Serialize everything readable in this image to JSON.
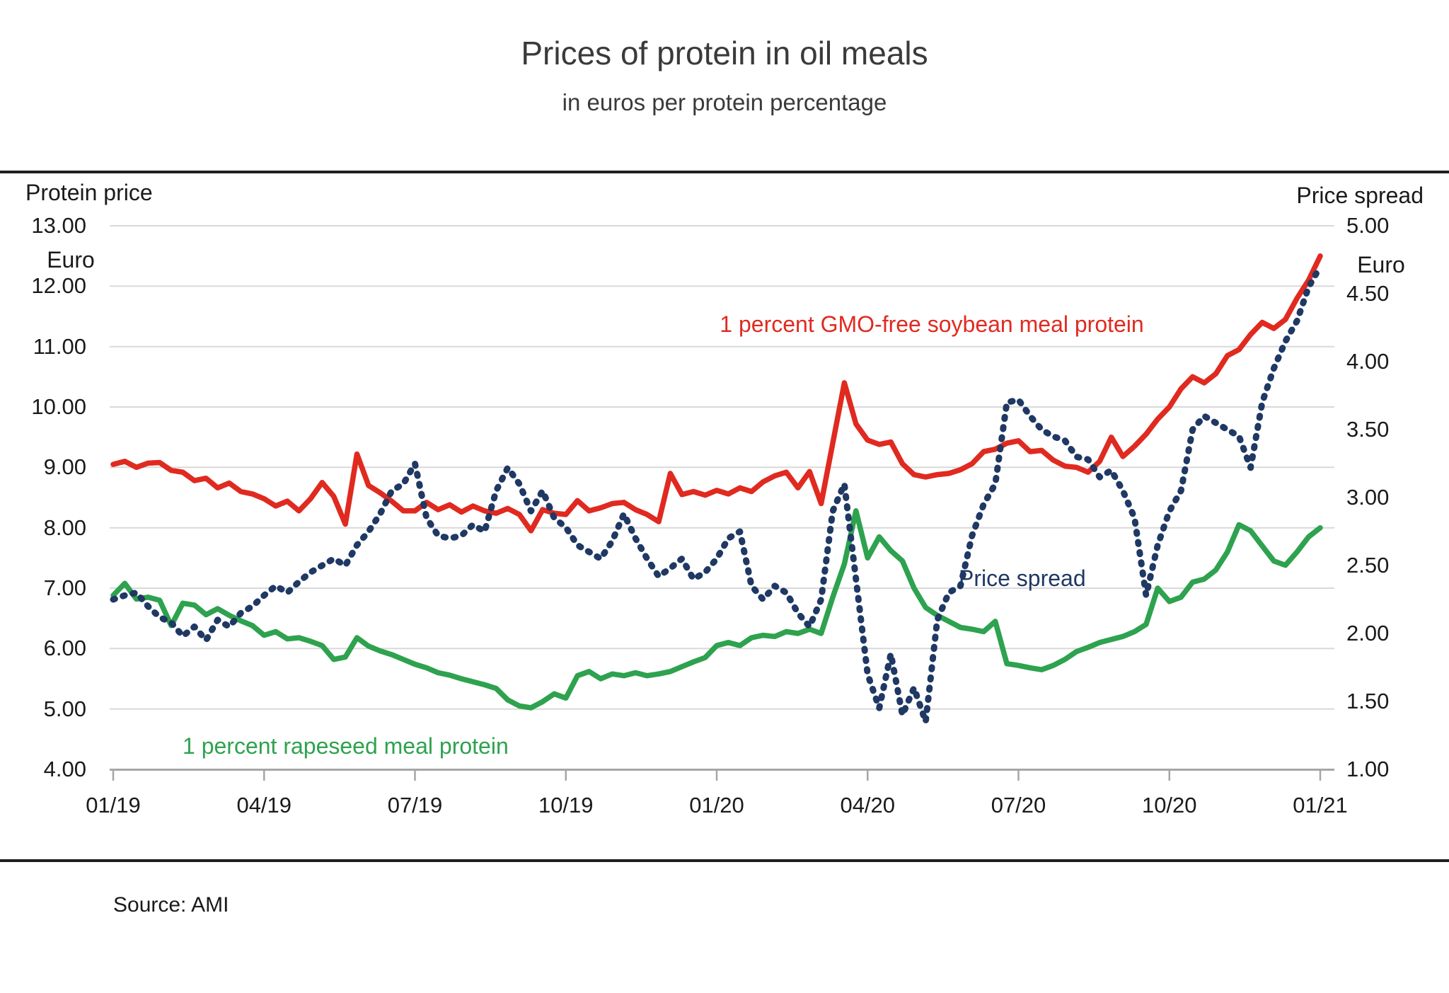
{
  "chart_data": {
    "type": "line",
    "title": "Prices of protein in oil meals",
    "subtitle": "in euros per protein percentage",
    "source": "Source: AMI",
    "left_axis": {
      "header": "Protein price",
      "unit": "Euro",
      "range": [
        4.0,
        13.0
      ],
      "ticks": [
        "13.00",
        "12.00",
        "11.00",
        "10.00",
        "9.00",
        "8.00",
        "7.00",
        "6.00",
        "5.00",
        "4.00"
      ]
    },
    "right_axis": {
      "header": "Price spread",
      "unit": "Euro",
      "range": [
        1.0,
        5.0
      ],
      "ticks": [
        "5.00",
        "4.50",
        "4.00",
        "3.50",
        "3.00",
        "2.50",
        "2.00",
        "1.50",
        "1.00"
      ]
    },
    "x_axis": {
      "tick_labels": [
        "01/19",
        "04/19",
        "07/19",
        "10/19",
        "01/20",
        "04/20",
        "07/20",
        "10/20",
        "01/21"
      ],
      "tick_weeks": [
        0,
        13,
        26,
        39,
        52,
        65,
        78,
        91,
        104
      ],
      "weeks_total": 104
    },
    "grid": "horizontal-only",
    "colors": {
      "soybean": "#e02a20",
      "rapeseed": "#2ea24e",
      "spread": "#1f3864",
      "gridline": "#d9d9d9",
      "axis": "#a6a6a6",
      "rule": "#1f1f1f"
    },
    "series": [
      {
        "name": "1 percent GMO-free soybean meal protein",
        "axis": "left",
        "style": "solid",
        "color": "#e02a20",
        "values": [
          9.05,
          9.1,
          9.0,
          9.07,
          9.08,
          8.95,
          8.92,
          8.78,
          8.82,
          8.66,
          8.74,
          8.6,
          8.56,
          8.48,
          8.36,
          8.44,
          8.28,
          8.48,
          8.75,
          8.52,
          8.06,
          9.22,
          8.7,
          8.58,
          8.44,
          8.28,
          8.28,
          8.42,
          8.3,
          8.38,
          8.26,
          8.36,
          8.28,
          8.24,
          8.32,
          8.22,
          7.95,
          8.3,
          8.24,
          8.22,
          8.45,
          8.28,
          8.33,
          8.4,
          8.42,
          8.3,
          8.22,
          8.1,
          8.9,
          8.55,
          8.6,
          8.54,
          8.62,
          8.56,
          8.66,
          8.6,
          8.76,
          8.86,
          8.92,
          8.66,
          8.93,
          8.4,
          9.4,
          10.4,
          9.72,
          9.45,
          9.38,
          9.42,
          9.06,
          8.88,
          8.84,
          8.88,
          8.9,
          8.96,
          9.06,
          9.26,
          9.3,
          9.4,
          9.44,
          9.26,
          9.28,
          9.12,
          9.02,
          9.0,
          8.92,
          9.1,
          9.5,
          9.18,
          9.35,
          9.55,
          9.8,
          10.0,
          10.3,
          10.5,
          10.4,
          10.55,
          10.85,
          10.95,
          11.2,
          11.4,
          11.3,
          11.45,
          11.8,
          12.1,
          12.5
        ]
      },
      {
        "name": "1 percent rapeseed meal protein",
        "axis": "left",
        "style": "solid",
        "color": "#2ea24e",
        "values": [
          6.88,
          7.08,
          6.82,
          6.85,
          6.8,
          6.38,
          6.75,
          6.72,
          6.56,
          6.66,
          6.55,
          6.46,
          6.38,
          6.22,
          6.28,
          6.16,
          6.18,
          6.12,
          6.05,
          5.82,
          5.86,
          6.18,
          6.04,
          5.96,
          5.9,
          5.82,
          5.74,
          5.68,
          5.6,
          5.56,
          5.5,
          5.45,
          5.4,
          5.34,
          5.15,
          5.05,
          5.02,
          5.12,
          5.25,
          5.18,
          5.55,
          5.62,
          5.5,
          5.58,
          5.55,
          5.6,
          5.55,
          5.58,
          5.62,
          5.7,
          5.78,
          5.85,
          6.05,
          6.1,
          6.05,
          6.18,
          6.22,
          6.2,
          6.28,
          6.25,
          6.32,
          6.25,
          6.85,
          7.4,
          8.28,
          7.5,
          7.85,
          7.62,
          7.45,
          7.0,
          6.68,
          6.55,
          6.45,
          6.35,
          6.32,
          6.28,
          6.45,
          5.75,
          5.72,
          5.68,
          5.65,
          5.72,
          5.82,
          5.95,
          6.02,
          6.1,
          6.15,
          6.2,
          6.28,
          6.4,
          7.0,
          6.78,
          6.85,
          7.1,
          7.15,
          7.3,
          7.6,
          8.05,
          7.95,
          7.7,
          7.45,
          7.38,
          7.6,
          7.85,
          8.0
        ]
      },
      {
        "name": "Price spread",
        "axis": "right",
        "style": "dotted",
        "color": "#1f3864",
        "values": [
          2.25,
          2.28,
          2.3,
          2.2,
          2.12,
          2.08,
          1.98,
          2.05,
          1.95,
          2.1,
          2.05,
          2.15,
          2.2,
          2.28,
          2.35,
          2.3,
          2.38,
          2.45,
          2.5,
          2.55,
          2.5,
          2.65,
          2.75,
          2.88,
          3.05,
          3.1,
          3.25,
          2.85,
          2.72,
          2.7,
          2.72,
          2.8,
          2.75,
          3.05,
          3.22,
          3.1,
          2.9,
          3.05,
          2.85,
          2.78,
          2.65,
          2.6,
          2.55,
          2.68,
          2.88,
          2.7,
          2.55,
          2.42,
          2.48,
          2.55,
          2.4,
          2.45,
          2.55,
          2.7,
          2.75,
          2.35,
          2.25,
          2.35,
          2.3,
          2.15,
          2.05,
          2.25,
          2.9,
          3.1,
          2.4,
          1.7,
          1.45,
          1.85,
          1.4,
          1.6,
          1.35,
          2.1,
          2.3,
          2.35,
          2.72,
          2.95,
          3.1,
          3.7,
          3.72,
          3.6,
          3.5,
          3.45,
          3.42,
          3.3,
          3.28,
          3.15,
          3.2,
          3.05,
          2.85,
          2.28,
          2.65,
          2.9,
          3.05,
          3.5,
          3.6,
          3.55,
          3.5,
          3.45,
          3.22,
          3.7,
          3.95,
          4.15,
          4.3,
          4.55,
          4.7
        ]
      }
    ]
  }
}
